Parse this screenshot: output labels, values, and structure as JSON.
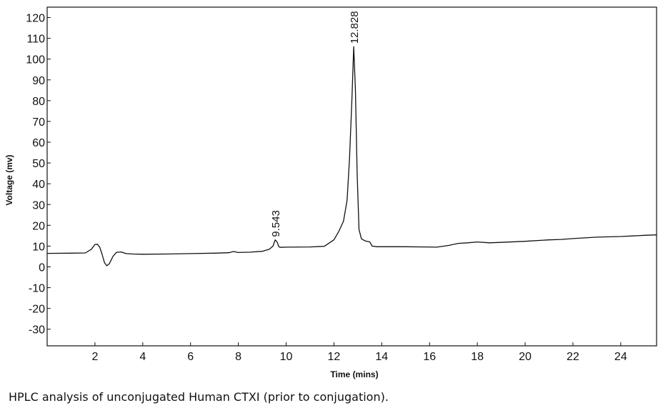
{
  "caption": "HPLC analysis of unconjugated Human CTXI (prior to conjugation).",
  "chart_data": {
    "type": "line",
    "title": "",
    "xlabel": "Time (mins)",
    "ylabel": "Voltage (mv)",
    "xlim": [
      0,
      25.5
    ],
    "ylim": [
      -38,
      125
    ],
    "x_ticks": [
      2,
      4,
      6,
      8,
      10,
      12,
      14,
      16,
      18,
      20,
      22,
      24
    ],
    "y_ticks": [
      -30,
      -20,
      -10,
      0,
      10,
      20,
      30,
      40,
      50,
      60,
      70,
      80,
      90,
      100,
      110,
      120
    ],
    "grid": false,
    "legend": "none",
    "line_color": "#111111",
    "series": [
      {
        "x": [
          0,
          1.0,
          1.6,
          1.85,
          2.0,
          2.1,
          2.2,
          2.3,
          2.4,
          2.5,
          2.6,
          2.75,
          2.9,
          3.1,
          3.3,
          3.6,
          4.0,
          5.0,
          6.0,
          7.0,
          7.6,
          7.8,
          8.0,
          8.5,
          9.0,
          9.3,
          9.45,
          9.543,
          9.62,
          9.7,
          9.8,
          10.0,
          11.0,
          11.6,
          12.0,
          12.2,
          12.4,
          12.55,
          12.65,
          12.75,
          12.828,
          12.9,
          12.97,
          13.05,
          13.15,
          13.3,
          13.5,
          13.6,
          13.8,
          14.0,
          15.0,
          15.8,
          16.3,
          16.8,
          17.2,
          17.6,
          18.0,
          18.5,
          19.0,
          20.0,
          21.0,
          21.5,
          22.0,
          23.0,
          24.0,
          25.0,
          25.5
        ],
        "y": [
          6.5,
          6.6,
          6.7,
          8.5,
          10.8,
          10.9,
          9.5,
          6.0,
          2.0,
          0.5,
          1.5,
          5.0,
          7.0,
          7.2,
          6.4,
          6.2,
          6.1,
          6.2,
          6.4,
          6.6,
          6.8,
          7.4,
          6.9,
          7.1,
          7.5,
          8.5,
          10.0,
          13.0,
          12.0,
          9.6,
          9.4,
          9.5,
          9.6,
          9.9,
          13.0,
          17.0,
          22.0,
          32.0,
          52.0,
          80.0,
          106.0,
          85.0,
          45.0,
          18.0,
          13.5,
          12.5,
          12.0,
          10.0,
          9.7,
          9.7,
          9.7,
          9.6,
          9.5,
          10.3,
          11.3,
          11.6,
          12.0,
          11.6,
          11.8,
          12.3,
          13.0,
          13.2,
          13.6,
          14.3,
          14.6,
          15.2,
          15.4
        ]
      }
    ],
    "peak_labels": [
      {
        "x": 9.543,
        "y": 13.0,
        "text": "9.543"
      },
      {
        "x": 12.828,
        "y": 106.0,
        "text": "12.828"
      }
    ]
  }
}
